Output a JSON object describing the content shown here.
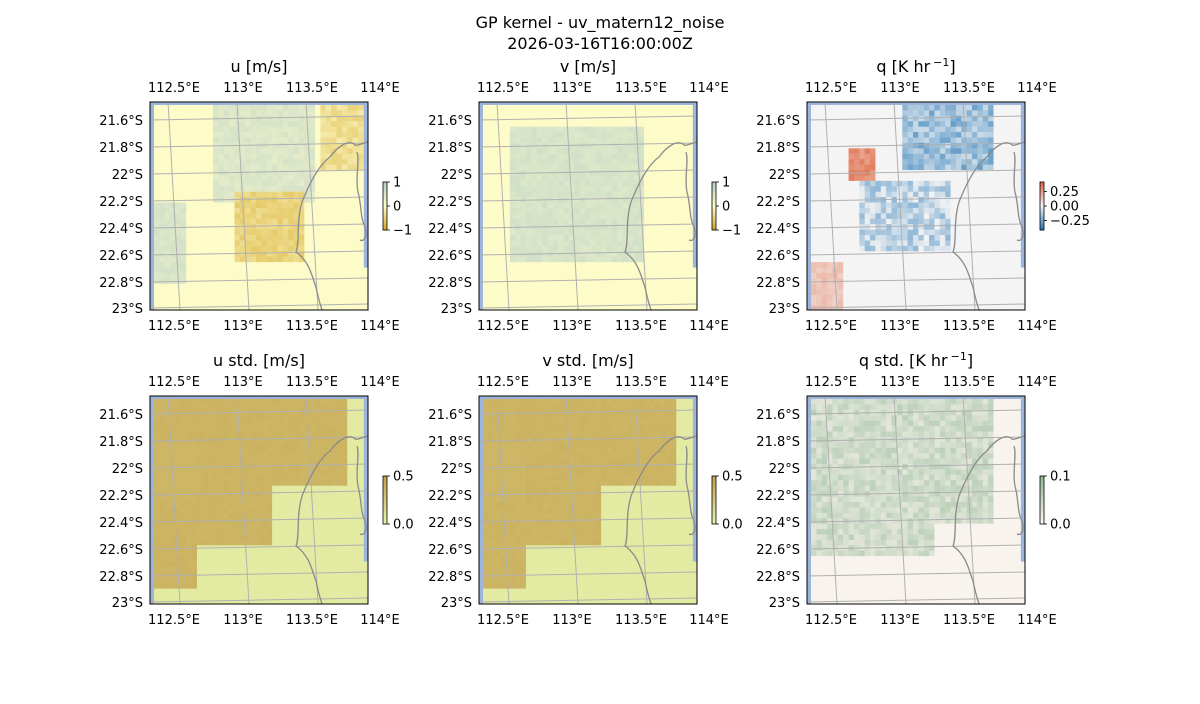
{
  "figure": {
    "title_line1": "GP kernel - uv_matern12_noise",
    "title_line2": "2026-03-16T16:00:00Z"
  },
  "axes": {
    "lon_ticks": [
      "112.5°E",
      "113°E",
      "113.5°E",
      "114°E"
    ],
    "lat_ticks": [
      "21.6°S",
      "21.8°S",
      "22°S",
      "22.2°S",
      "22.4°S",
      "22.6°S",
      "22.8°S",
      "23°S"
    ]
  },
  "chart_data": [
    {
      "type": "heatmap",
      "panel": "u",
      "title": "u [m/s]",
      "colorbar": {
        "ticks": [
          "1",
          "0",
          "−1"
        ],
        "range": [
          -1,
          1
        ]
      },
      "colors": {
        "low": "#d6a92c",
        "mid": "#fdfcc9",
        "high": "#b7cfc8"
      }
    },
    {
      "type": "heatmap",
      "panel": "v",
      "title": "v [m/s]",
      "colorbar": {
        "ticks": [
          "1",
          "0",
          "−1"
        ],
        "range": [
          -1,
          1
        ]
      },
      "colors": {
        "low": "#d6a92c",
        "mid": "#fdfcc9",
        "high": "#b7cfc8"
      }
    },
    {
      "type": "heatmap",
      "panel": "q",
      "title": "q [K hr",
      "title_sup": "−1",
      "title_end": "]",
      "colorbar": {
        "ticks": [
          "0.25",
          "0.00",
          "−0.25"
        ],
        "range": [
          -0.5,
          0.5
        ]
      },
      "colors": {
        "low": "#2a7ab8",
        "mid": "#f4f4f4",
        "high": "#e06a45"
      }
    },
    {
      "type": "heatmap",
      "panel": "u_std",
      "title": "u std. [m/s]",
      "colorbar": {
        "ticks": [
          "0.5",
          "0.0"
        ],
        "range": [
          0,
          1
        ]
      },
      "colors": {
        "low": "#e6f3ad",
        "high": "#c4a24d"
      }
    },
    {
      "type": "heatmap",
      "panel": "v_std",
      "title": "v std. [m/s]",
      "colorbar": {
        "ticks": [
          "0.5",
          "0.0"
        ],
        "range": [
          0,
          1
        ]
      },
      "colors": {
        "low": "#e6f3ad",
        "high": "#c4a24d"
      }
    },
    {
      "type": "heatmap",
      "panel": "q_std",
      "title": "q std. [K hr",
      "title_sup": "−1",
      "title_end": "]",
      "colorbar": {
        "ticks": [
          "0.1",
          "0.0"
        ],
        "range": [
          0,
          0.2
        ]
      },
      "colors": {
        "low": "#fff6f2",
        "high": "#8fb894"
      }
    }
  ],
  "map_colors": {
    "ocean": "#9db4dd",
    "coast": "#8a8a8a",
    "grid": "#b0b0b0"
  }
}
